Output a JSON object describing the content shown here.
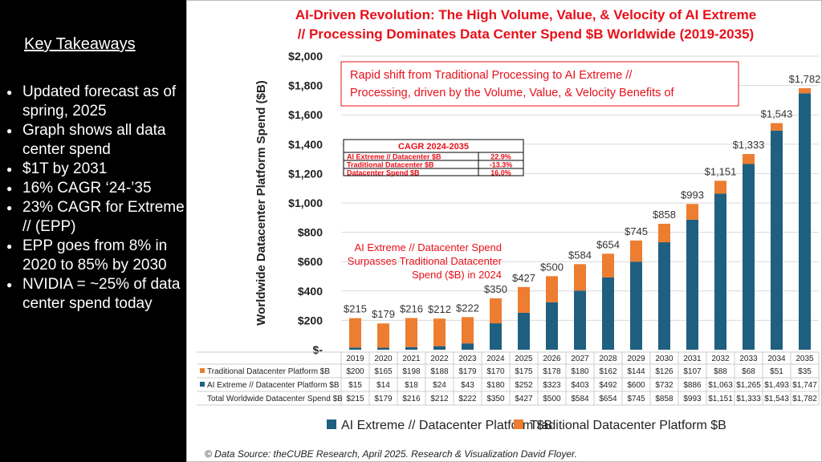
{
  "left_panel": {
    "heading": "Key Takeaways",
    "bullets": [
      "Updated forecast as of spring, 2025",
      "Graph shows all data center spend",
      "$1T by 2031",
      "16% CAGR ‘24-’35",
      "23% CAGR for Extreme // (EPP)",
      "EPP goes from 8% in 2020 to 85% by 2030",
      "NVIDIA = ~25% of data center spend today"
    ]
  },
  "colors": {
    "ai": "#1f5f7f",
    "traditional": "#ed7d31",
    "title": "#e8101a"
  },
  "chart_data": {
    "type": "bar",
    "stacked": true,
    "title": [
      "AI-Driven Revolution: The High Volume, Value, & Velocity of AI Extreme",
      "// Processing Dominates Data Center Spend $B Worldwide (2019-2035)"
    ],
    "ylabel": "Worldwide Datacenter Platform Spend ($B)",
    "ylim": [
      0,
      2000
    ],
    "yticks": [
      "$-",
      "$200",
      "$400",
      "$600",
      "$800",
      "$1,000",
      "$1,200",
      "$1,400",
      "$1,600",
      "$1,800",
      "$2,000"
    ],
    "grid": true,
    "legend_placement": "bottom",
    "categories": [
      "2019",
      "2020",
      "2021",
      "2022",
      "2023",
      "2024",
      "2025",
      "2026",
      "2027",
      "2028",
      "2029",
      "2030",
      "2031",
      "2032",
      "2033",
      "2034",
      "2035"
    ],
    "series": [
      {
        "name": "AI Extreme // Datacenter Platform $B",
        "table_label": "AI Extreme // Datacenter Platform $B",
        "values": [
          15,
          14,
          18,
          24,
          43,
          180,
          252,
          323,
          403,
          492,
          600,
          732,
          886,
          1063,
          1265,
          1493,
          1747
        ],
        "labels": [
          "$15",
          "$14",
          "$18",
          "$24",
          "$43",
          "$180",
          "$252",
          "$323",
          "$403",
          "$492",
          "$600",
          "$732",
          "$886",
          "$1,063",
          "$1,265",
          "$1,493",
          "$1,747"
        ]
      },
      {
        "name": "Traditional Datacenter Platform $B",
        "table_label": "Traditional Datacenter Platform $B",
        "values": [
          200,
          165,
          198,
          188,
          179,
          170,
          175,
          178,
          180,
          162,
          144,
          126,
          107,
          88,
          68,
          51,
          35
        ],
        "labels": [
          "$200",
          "$165",
          "$198",
          "$188",
          "$179",
          "$170",
          "$175",
          "$178",
          "$180",
          "$162",
          "$144",
          "$126",
          "$107",
          "$88",
          "$68",
          "$51",
          "$35"
        ]
      }
    ],
    "totals": {
      "label": "Total Worldwide Datacenter Spend $B",
      "values": [
        "$215",
        "$179",
        "$216",
        "$212",
        "$222",
        "$350",
        "$427",
        "$500",
        "$584",
        "$654",
        "$745",
        "$858",
        "$993",
        "$1,151",
        "$1,333",
        "$1,543",
        "$1,782"
      ]
    },
    "annotations": {
      "box": [
        "Rapid shift from Traditional Processing to AI Extreme //",
        "Processing, driven by the Volume, Value, & Velocity Benefits of"
      ],
      "crossover": [
        "AI Extreme // Datacenter Spend",
        "Surpasses Traditional Datacenter",
        "Spend ($B) in 2024"
      ]
    },
    "cagr_table": {
      "title": "CAGR 2024-2035",
      "rows": [
        {
          "label": "AI Extreme // Datacenter $B",
          "value": "22.9%"
        },
        {
          "label": "Traditional Datacenter $B",
          "value": "-13.3%"
        },
        {
          "label": "Datacenter Spend $B",
          "value": "16.0%"
        }
      ]
    },
    "source": "© Data Source: theCUBE Research, April 2025. Research & Visualization David Floyer."
  }
}
